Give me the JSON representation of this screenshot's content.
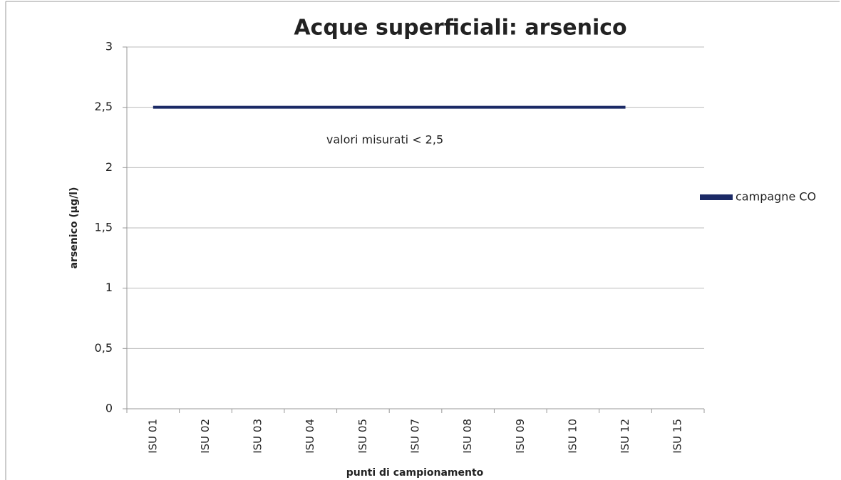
{
  "chart_data": {
    "type": "line",
    "title": "Acque superficiali: arsenico",
    "annotation": "valori misurati < 2,5",
    "x_label": "punti di campionamento",
    "y_label": "arsenico (µg/l)",
    "categories": [
      "ISU 01",
      "ISU 02",
      "ISU 03",
      "ISU 04",
      "ISU 05",
      "ISU 07",
      "ISU 08",
      "ISU 09",
      "ISU 10",
      "ISU 12",
      "ISU 15"
    ],
    "series": [
      {
        "name": "campagne CO",
        "color": "#1b2a66",
        "values": [
          2.5,
          2.5,
          2.5,
          2.5,
          2.5,
          2.5,
          2.5,
          2.5,
          2.5,
          2.5,
          null
        ]
      }
    ],
    "ylim": [
      0,
      3
    ],
    "yticks": [
      0,
      {
        "value": 0.5,
        "label": "0,5"
      },
      1,
      {
        "value": 1.5,
        "label": "1,5"
      },
      2,
      {
        "value": 2.5,
        "label": "2,5"
      },
      3
    ],
    "grid": true,
    "legend": "right"
  }
}
